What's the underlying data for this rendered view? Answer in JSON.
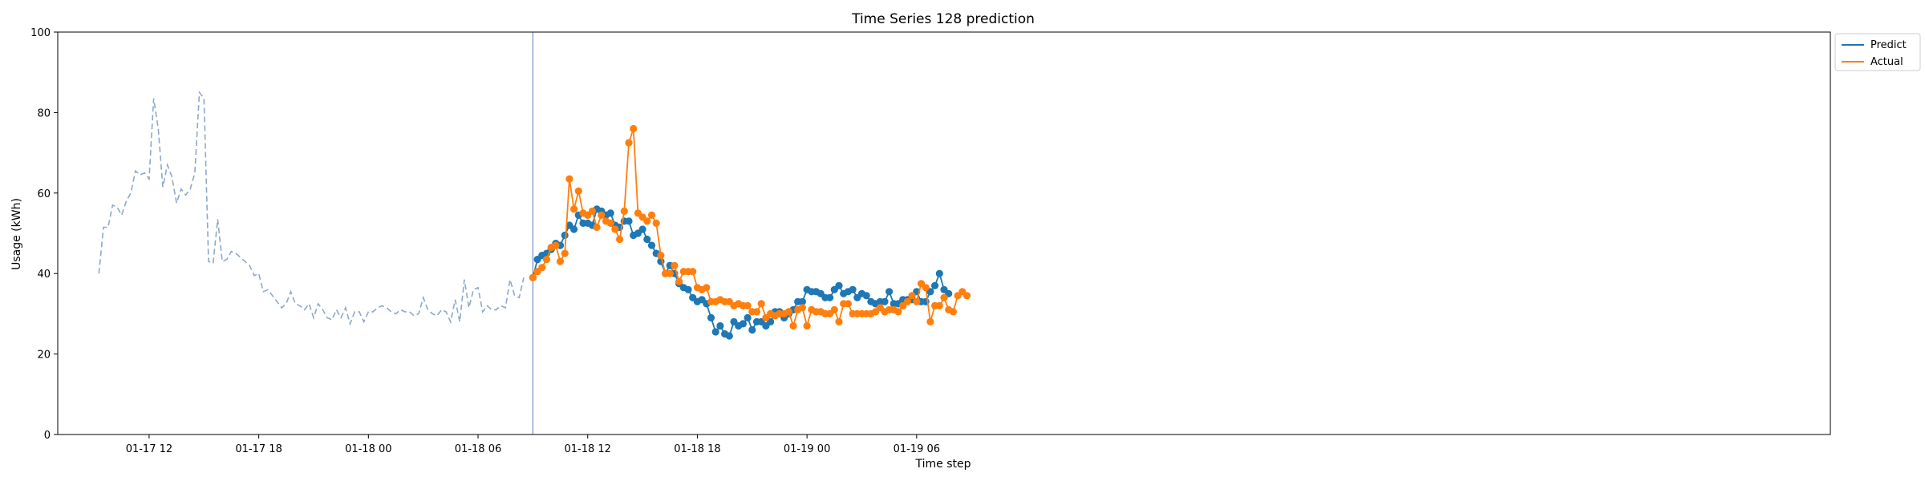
{
  "chart_data": {
    "type": "line",
    "title": "Time Series 128 prediction",
    "xlabel": "Time step",
    "ylabel": "Usage (kWh)",
    "ylim": [
      0,
      100
    ],
    "yticks": [
      0,
      20,
      40,
      60,
      80,
      100
    ],
    "x_range_hours": [
      0,
      97
    ],
    "x_unit": "hours since 01-17 07:00",
    "xticks": [
      {
        "label": "01-17 12",
        "hour": 5
      },
      {
        "label": "01-17 18",
        "hour": 11
      },
      {
        "label": "01-18 00",
        "hour": 17
      },
      {
        "label": "01-18 06",
        "hour": 23
      },
      {
        "label": "01-18 12",
        "hour": 29
      },
      {
        "label": "01-18 18",
        "hour": 35
      },
      {
        "label": "01-19 00",
        "hour": 41
      },
      {
        "label": "01-19 06",
        "hour": 47
      }
    ],
    "grid": false,
    "legend_position": "top-right, outside",
    "history": {
      "start_hour": 2.25,
      "step_hours": 0.25,
      "style": "dashed",
      "color": "#8fa8c8",
      "values": [
        40,
        51.5,
        51.5,
        57,
        56.5,
        54.5,
        58,
        60,
        65.5,
        64.5,
        65,
        63.5,
        83.5,
        76,
        61.5,
        67,
        64,
        57.5,
        61,
        59.5,
        61,
        65,
        85,
        83.5,
        43,
        42.5,
        53.5,
        43,
        43.5,
        45.5,
        45,
        44,
        43,
        42,
        39.5,
        40,
        35.5,
        36,
        34.5,
        33,
        31.5,
        32.5,
        35.5,
        32.5,
        32,
        31,
        32.5,
        29,
        32.5,
        31,
        29,
        28.5,
        31,
        29,
        31.5,
        27.5,
        30.5,
        30.5,
        28,
        30.5,
        30.5,
        31.5,
        32,
        31.5,
        30.5,
        30,
        31,
        30.5,
        30.5,
        29.5,
        30,
        34,
        31,
        30,
        29.5,
        31,
        30.5,
        28,
        33.5,
        28,
        38.5,
        31.5,
        36,
        36.5,
        30.5,
        32,
        31,
        31,
        32,
        31.5,
        38.5,
        34.5,
        34,
        39
      ]
    },
    "forecast_start_hour": 26,
    "forecast_step_hours": 0.25,
    "series": [
      {
        "name": "Predict",
        "color": "#1f77b4",
        "values": [
          39,
          43.5,
          44.5,
          45,
          46,
          47.5,
          47,
          49.5,
          52,
          51,
          54.5,
          52.5,
          52.5,
          52,
          56,
          55.5,
          54.5,
          55,
          52,
          51.5,
          53,
          53,
          49.5,
          50,
          51,
          48.5,
          47,
          45,
          43,
          40,
          42,
          40,
          37.5,
          36.5,
          36,
          34,
          33,
          33.5,
          32.5,
          29,
          25.5,
          27,
          25,
          24.5,
          28,
          27,
          27.5,
          29,
          26,
          28,
          28,
          27,
          28,
          30.5,
          30.5,
          29,
          30,
          31,
          33,
          33,
          36,
          35.5,
          35.5,
          35,
          34,
          34,
          36,
          37,
          35,
          35.5,
          36,
          34,
          35,
          34.5,
          33,
          32.5,
          33,
          33,
          35.5,
          32.5,
          32.5,
          33.5,
          33.5,
          33.5,
          35.5,
          33,
          33,
          35.5,
          37,
          40,
          36,
          35
        ]
      },
      {
        "name": "Actual",
        "color": "#ff7f0e",
        "values": [
          39,
          40.5,
          41.5,
          43.5,
          46.5,
          47,
          43,
          45,
          63.5,
          56,
          60.5,
          55,
          54.5,
          55.5,
          51.5,
          54.5,
          53,
          52.5,
          51,
          48.5,
          55.5,
          72.5,
          76,
          55,
          54,
          53,
          54.5,
          52.5,
          44.5,
          40,
          40,
          42,
          38,
          40.5,
          40.5,
          40.5,
          36.5,
          36,
          36.5,
          33,
          33,
          33.5,
          33,
          33,
          32,
          32.5,
          32,
          32,
          30.5,
          30.5,
          32.5,
          29,
          30,
          29.5,
          30,
          30,
          30.5,
          27,
          31,
          31.5,
          27,
          31,
          30.5,
          30.5,
          30,
          30,
          31,
          28,
          32.5,
          32.5,
          30,
          30,
          30,
          30,
          30,
          30.5,
          31.5,
          30.5,
          31,
          31,
          30.5,
          32,
          33,
          34.5,
          33,
          37.5,
          36.5,
          28,
          32,
          32,
          34,
          31,
          30.5,
          34.5,
          35.5,
          34.5
        ]
      }
    ]
  }
}
